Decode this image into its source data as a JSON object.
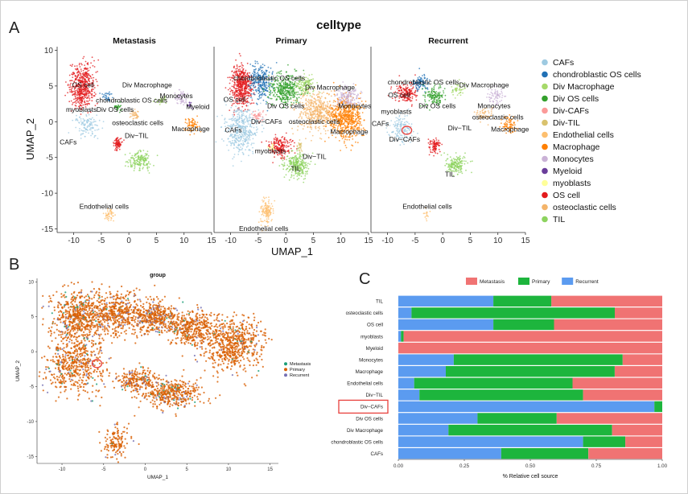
{
  "panel_letters": {
    "a": "A",
    "b": "B",
    "c": "C"
  },
  "highlight_color": "#e8403c",
  "chart_data": [
    {
      "type": "scatter",
      "panel": "A",
      "title": "celltype",
      "xlabel": "UMAP_1",
      "ylabel": "UMAP_2",
      "xlim": [
        -13,
        15
      ],
      "ylim": [
        -15.5,
        10.5
      ],
      "xticks": [
        -10,
        -5,
        0,
        5,
        10,
        15
      ],
      "yticks": [
        10,
        5,
        0,
        -5,
        -10,
        -15
      ],
      "facets": [
        "Metastasis",
        "Primary",
        "Recurrent"
      ],
      "legend": {
        "position": "right",
        "entries": [
          {
            "name": "CAFs",
            "color": "#9ecae1"
          },
          {
            "name": "chondroblastic OS cells",
            "color": "#2171b5"
          },
          {
            "name": "Div Macrophage",
            "color": "#a6d96a"
          },
          {
            "name": "Div OS cells",
            "color": "#33a02c"
          },
          {
            "name": "Div-CAFs",
            "color": "#fb9a99"
          },
          {
            "name": "Div-TIL",
            "color": "#d9c26e"
          },
          {
            "name": "Endothelial cells",
            "color": "#fdbf6f"
          },
          {
            "name": "Macrophage",
            "color": "#ff7f00"
          },
          {
            "name": "Monocytes",
            "color": "#cab2d6"
          },
          {
            "name": "Myeloid",
            "color": "#6a3d9a"
          },
          {
            "name": "myoblasts",
            "color": "#ffff99"
          },
          {
            "name": "OS cell",
            "color": "#e31a1c"
          },
          {
            "name": "osteoclastic cells",
            "color": "#f4b46a"
          },
          {
            "name": "TIL",
            "color": "#8dd35f"
          }
        ]
      },
      "clusters": [
        {
          "facet": "Metastasis",
          "type": "OS cell",
          "x": -8.5,
          "y": 5,
          "r": [
            2.2,
            3
          ],
          "n": 500
        },
        {
          "facet": "Metastasis",
          "type": "CAFs",
          "x": -7.5,
          "y": -0.5,
          "r": [
            2.2,
            1.7
          ],
          "n": 120
        },
        {
          "facet": "Metastasis",
          "type": "OS cell",
          "x": -2,
          "y": -3,
          "r": [
            0.8,
            0.9
          ],
          "n": 80
        },
        {
          "facet": "Metastasis",
          "type": "TIL",
          "x": 2,
          "y": -5.5,
          "r": [
            2.2,
            1.3
          ],
          "n": 170
        },
        {
          "facet": "Metastasis",
          "type": "chondroblastic OS cells",
          "x": -4,
          "y": 3.5,
          "r": [
            0.8,
            0.7
          ],
          "n": 30
        },
        {
          "facet": "Metastasis",
          "type": "Div OS cells",
          "x": -2,
          "y": 2,
          "r": [
            0.7,
            0.6
          ],
          "n": 30
        },
        {
          "facet": "Metastasis",
          "type": "Div Macrophage",
          "x": 6,
          "y": 3,
          "r": [
            1,
            0.6
          ],
          "n": 30
        },
        {
          "facet": "Metastasis",
          "type": "Monocytes",
          "x": 9.5,
          "y": 3.5,
          "r": [
            1.4,
            1.2
          ],
          "n": 60
        },
        {
          "facet": "Metastasis",
          "type": "Myeloid",
          "x": 11,
          "y": 2.3,
          "r": [
            0.4,
            0.4
          ],
          "n": 12
        },
        {
          "facet": "Metastasis",
          "type": "Macrophage",
          "x": 11.5,
          "y": -0.5,
          "r": [
            1.3,
            1.1
          ],
          "n": 70
        },
        {
          "facet": "Metastasis",
          "type": "osteoclastic cells",
          "x": 1,
          "y": 1,
          "r": [
            0.9,
            0.6
          ],
          "n": 40
        },
        {
          "facet": "Metastasis",
          "type": "Endothelial cells",
          "x": -3.5,
          "y": -13,
          "r": [
            0.9,
            0.9
          ],
          "n": 45
        },
        {
          "facet": "Primary",
          "type": "OS cell",
          "x": -8,
          "y": 5,
          "r": [
            2,
            3
          ],
          "n": 500
        },
        {
          "facet": "Primary",
          "type": "chondroblastic OS cells",
          "x": -4.5,
          "y": 5.5,
          "r": [
            2,
            2.5
          ],
          "n": 260
        },
        {
          "facet": "Primary",
          "type": "Div OS cells",
          "x": 0,
          "y": 4.5,
          "r": [
            3,
            2
          ],
          "n": 380
        },
        {
          "facet": "Primary",
          "type": "Div Macrophage",
          "x": 3.5,
          "y": 5,
          "r": [
            1.8,
            1.3
          ],
          "n": 120
        },
        {
          "facet": "Primary",
          "type": "osteoclastic cells",
          "x": 5.5,
          "y": 1.5,
          "r": [
            3.5,
            2.5
          ],
          "n": 420
        },
        {
          "facet": "Primary",
          "type": "Macrophage",
          "x": 11,
          "y": 0.5,
          "r": [
            3,
            3
          ],
          "n": 600
        },
        {
          "facet": "Primary",
          "type": "Monocytes",
          "x": 11,
          "y": 3.5,
          "r": [
            2,
            1.5
          ],
          "n": 150
        },
        {
          "facet": "Primary",
          "type": "CAFs",
          "x": -8,
          "y": -1,
          "r": [
            3,
            3.5
          ],
          "n": 420
        },
        {
          "facet": "Primary",
          "type": "Div-CAFs",
          "x": -5,
          "y": 0.8,
          "r": [
            1,
            0.8
          ],
          "n": 45
        },
        {
          "facet": "Primary",
          "type": "OS cell",
          "x": -1,
          "y": -3.5,
          "r": [
            2,
            1.4
          ],
          "n": 200
        },
        {
          "facet": "Primary",
          "type": "myoblasts",
          "x": -2.5,
          "y": -3.5,
          "r": [
            0.7,
            0.5
          ],
          "n": 20
        },
        {
          "facet": "Primary",
          "type": "Div-TIL",
          "x": 2.5,
          "y": -3.5,
          "r": [
            0.5,
            0.8
          ],
          "n": 25
        },
        {
          "facet": "Primary",
          "type": "TIL",
          "x": 2,
          "y": -6,
          "r": [
            2.2,
            1.6
          ],
          "n": 280
        },
        {
          "facet": "Primary",
          "type": "Endothelial cells",
          "x": -3.5,
          "y": -12.5,
          "r": [
            1.2,
            2
          ],
          "n": 130
        },
        {
          "facet": "Recurrent",
          "type": "OS cell",
          "x": -6.5,
          "y": 4,
          "r": [
            2,
            1.5
          ],
          "n": 180
        },
        {
          "facet": "Recurrent",
          "type": "chondroblastic OS cells",
          "x": -4,
          "y": 5.5,
          "r": [
            1.3,
            1.2
          ],
          "n": 90
        },
        {
          "facet": "Recurrent",
          "type": "Div OS cells",
          "x": -1.5,
          "y": 3.5,
          "r": [
            2.2,
            1.4
          ],
          "n": 140
        },
        {
          "facet": "Recurrent",
          "type": "Div Macrophage",
          "x": 3,
          "y": 4.5,
          "r": [
            1.3,
            0.9
          ],
          "n": 45
        },
        {
          "facet": "Recurrent",
          "type": "Monocytes",
          "x": 9.5,
          "y": 3.5,
          "r": [
            1.4,
            1.2
          ],
          "n": 70
        },
        {
          "facet": "Recurrent",
          "type": "Macrophage",
          "x": 12,
          "y": -0.5,
          "r": [
            1.5,
            1.2
          ],
          "n": 80
        },
        {
          "facet": "Recurrent",
          "type": "CAFs",
          "x": -7.5,
          "y": -1,
          "r": [
            2.2,
            2
          ],
          "n": 140
        },
        {
          "facet": "Recurrent",
          "type": "OS cell",
          "x": -1.5,
          "y": -3.5,
          "r": [
            1,
            1
          ],
          "n": 90
        },
        {
          "facet": "Recurrent",
          "type": "TIL",
          "x": 2.5,
          "y": -6,
          "r": [
            2,
            1.3
          ],
          "n": 170
        },
        {
          "facet": "Recurrent",
          "type": "osteoclastic cells",
          "x": 7.5,
          "y": 1,
          "r": [
            1.5,
            1
          ],
          "n": 50
        },
        {
          "facet": "Recurrent",
          "type": "Endothelial cells",
          "x": -3,
          "y": -13,
          "r": [
            0.6,
            0.6
          ],
          "n": 15
        }
      ],
      "annotations": [
        {
          "facet": "Metastasis",
          "text": "OS cell",
          "x": -8.3,
          "y": 4.8
        },
        {
          "facet": "Metastasis",
          "text": "Div Macrophage",
          "x": 3.3,
          "y": 4.8
        },
        {
          "facet": "Metastasis",
          "text": "Monocytes",
          "x": 8.6,
          "y": 3.3
        },
        {
          "facet": "Metastasis",
          "text": "chondroblastic OS cells",
          "x": 0.5,
          "y": 2.7
        },
        {
          "facet": "Metastasis",
          "text": "myoblasts",
          "x": -8.6,
          "y": 1.4
        },
        {
          "facet": "Metastasis",
          "text": "Div OS cells",
          "x": -2.5,
          "y": 1.4
        },
        {
          "facet": "Metastasis",
          "text": "Myeloid",
          "x": 12.5,
          "y": 1.8
        },
        {
          "facet": "Metastasis",
          "text": "osteoclastic cells",
          "x": 1.6,
          "y": -0.5
        },
        {
          "facet": "Metastasis",
          "text": "Macrophage",
          "x": 11.2,
          "y": -1.3
        },
        {
          "facet": "Metastasis",
          "text": "Div−TIL",
          "x": 1.4,
          "y": -2.3
        },
        {
          "facet": "Metastasis",
          "text": "CAFs",
          "x": -11,
          "y": -3.2
        },
        {
          "facet": "Metastasis",
          "text": "Endothelial cells",
          "x": -4.5,
          "y": -12.2
        },
        {
          "facet": "Primary",
          "text": "chondroblastic OS cells",
          "x": -3,
          "y": 5.8
        },
        {
          "facet": "Primary",
          "text": "Div Macrophage",
          "x": 8,
          "y": 4.5
        },
        {
          "facet": "Primary",
          "text": "OS cell",
          "x": -9.3,
          "y": 2.8
        },
        {
          "facet": "Primary",
          "text": "Monocytes",
          "x": 12.5,
          "y": 1.9
        },
        {
          "facet": "Primary",
          "text": "Div OS cells",
          "x": 0,
          "y": 1.9
        },
        {
          "facet": "Primary",
          "text": "Div−CAFs",
          "x": -3.5,
          "y": -0.3
        },
        {
          "facet": "Primary",
          "text": "osteoclastic cells",
          "x": 5.2,
          "y": -0.3
        },
        {
          "facet": "Primary",
          "text": "CAFs",
          "x": -9.5,
          "y": -1.5
        },
        {
          "facet": "Primary",
          "text": "Macrophage",
          "x": 11.5,
          "y": -1.7
        },
        {
          "facet": "Primary",
          "text": "myoblasts",
          "x": -2.8,
          "y": -4.4
        },
        {
          "facet": "Primary",
          "text": "Div−TIL",
          "x": 5.2,
          "y": -5.2
        },
        {
          "facet": "Primary",
          "text": "TIL",
          "x": 1.8,
          "y": -6.9
        },
        {
          "facet": "Primary",
          "text": "Endothelial cells",
          "x": -4,
          "y": -15.3
        },
        {
          "facet": "Recurrent",
          "text": "chondroblastic OS cells",
          "x": -3.5,
          "y": 5.2
        },
        {
          "facet": "Recurrent",
          "text": "Div Macrophage",
          "x": 7.5,
          "y": 4.8
        },
        {
          "facet": "Recurrent",
          "text": "OS cell",
          "x": -7.9,
          "y": 3.4
        },
        {
          "facet": "Recurrent",
          "text": "Monocytes",
          "x": 9.3,
          "y": 1.9
        },
        {
          "facet": "Recurrent",
          "text": "myoblasts",
          "x": -8.4,
          "y": 1.1
        },
        {
          "facet": "Recurrent",
          "text": "Div OS cells",
          "x": -1,
          "y": 1.9
        },
        {
          "facet": "Recurrent",
          "text": "osteoclastic cells",
          "x": 10,
          "y": 0.3
        },
        {
          "facet": "Recurrent",
          "text": "CAFs",
          "x": -11.3,
          "y": -0.6
        },
        {
          "facet": "Recurrent",
          "text": "Div−TIL",
          "x": 3.1,
          "y": -1.2
        },
        {
          "facet": "Recurrent",
          "text": "Macrophage",
          "x": 12.2,
          "y": -1.4
        },
        {
          "facet": "Recurrent",
          "text": "Div−CAFs",
          "x": -6.9,
          "y": -2.8
        },
        {
          "facet": "Recurrent",
          "text": "TIL",
          "x": 1.3,
          "y": -7.7
        },
        {
          "facet": "Recurrent",
          "text": "Endothelial cells",
          "x": -2.8,
          "y": -12.2
        }
      ],
      "highlight": {
        "facet": "Recurrent",
        "x": -6.5,
        "y": -1.2
      }
    },
    {
      "type": "scatter",
      "panel": "B",
      "title": "group",
      "xlabel": "UMAP_1",
      "ylabel": "UMAP_2",
      "xlim": [
        -13,
        16
      ],
      "ylim": [
        -16,
        10.5
      ],
      "xticks": [
        -10,
        -5,
        0,
        5,
        10,
        15
      ],
      "yticks": [
        10,
        5,
        0,
        -5,
        -10,
        -15
      ],
      "legend": {
        "position": "right",
        "entries": [
          {
            "name": "Metastasis",
            "color": "#1b9e77"
          },
          {
            "name": "Primary",
            "color": "#d95f02"
          },
          {
            "name": "Recurrent",
            "color": "#7570b3"
          }
        ]
      },
      "clusters": [
        {
          "x": -8,
          "y": 5,
          "r": [
            3.5,
            4
          ],
          "n": 650,
          "mix": [
            0.04,
            0.9,
            0.06
          ]
        },
        {
          "x": -3.5,
          "y": 5.5,
          "r": [
            3,
            3.5
          ],
          "n": 420,
          "mix": [
            0.03,
            0.92,
            0.05
          ]
        },
        {
          "x": 1,
          "y": 5,
          "r": [
            3,
            2.5
          ],
          "n": 420,
          "mix": [
            0.03,
            0.9,
            0.07
          ]
        },
        {
          "x": 5.5,
          "y": 3.5,
          "r": [
            3,
            2.5
          ],
          "n": 400,
          "mix": [
            0.02,
            0.93,
            0.05
          ]
        },
        {
          "x": 10.5,
          "y": 1,
          "r": [
            3.5,
            3.5
          ],
          "n": 620,
          "mix": [
            0.02,
            0.95,
            0.03
          ]
        },
        {
          "x": -8.5,
          "y": -2,
          "r": [
            3.5,
            4
          ],
          "n": 520,
          "mix": [
            0.03,
            0.9,
            0.07
          ]
        },
        {
          "x": -1,
          "y": -4,
          "r": [
            2.3,
            1.6
          ],
          "n": 220,
          "mix": [
            0.04,
            0.88,
            0.08
          ]
        },
        {
          "x": 3,
          "y": -6,
          "r": [
            3.5,
            2
          ],
          "n": 420,
          "mix": [
            0.03,
            0.9,
            0.07
          ]
        },
        {
          "x": -3.5,
          "y": -13,
          "r": [
            1.6,
            2.5
          ],
          "n": 140,
          "mix": [
            0.02,
            0.96,
            0.02
          ]
        }
      ],
      "highlight": {
        "x": -5.8,
        "y": -1.7
      }
    },
    {
      "type": "bar",
      "stacked": "horizontal",
      "panel": "C",
      "xlabel": "% Relative cell source",
      "ylabel": "",
      "xlim": [
        0,
        1
      ],
      "xticks": [
        "0.00",
        "0.25",
        "0.50",
        "0.75",
        "1.00"
      ],
      "legend": {
        "position": "top"
      },
      "categories": [
        "TIL",
        "osteoclastic cells",
        "OS cell",
        "myoblasts",
        "Myeloid",
        "Monocytes",
        "Macrophage",
        "Endothelial cells",
        "Div−TIL",
        "Div−CAFs",
        "Div OS cells",
        "Div Macrophage",
        "chondroblastic OS cells",
        "CAFs"
      ],
      "series": [
        {
          "name": "Recurrent",
          "color": "#5b9bf0",
          "values": [
            0.36,
            0.05,
            0.36,
            0.01,
            0.0,
            0.21,
            0.18,
            0.06,
            0.08,
            0.97,
            0.3,
            0.19,
            0.7,
            0.39
          ]
        },
        {
          "name": "Primary",
          "color": "#1db53d",
          "values": [
            0.22,
            0.77,
            0.23,
            0.01,
            0.0,
            0.64,
            0.64,
            0.6,
            0.62,
            0.03,
            0.3,
            0.62,
            0.16,
            0.33
          ]
        },
        {
          "name": "Metastasis",
          "color": "#f07373",
          "values": [
            0.42,
            0.18,
            0.41,
            0.98,
            1.0,
            0.15,
            0.18,
            0.34,
            0.3,
            0.0,
            0.4,
            0.19,
            0.14,
            0.28
          ]
        }
      ],
      "legend_order": [
        "Metastasis",
        "Primary",
        "Recurrent"
      ],
      "highlight_category": "Div−CAFs"
    }
  ]
}
